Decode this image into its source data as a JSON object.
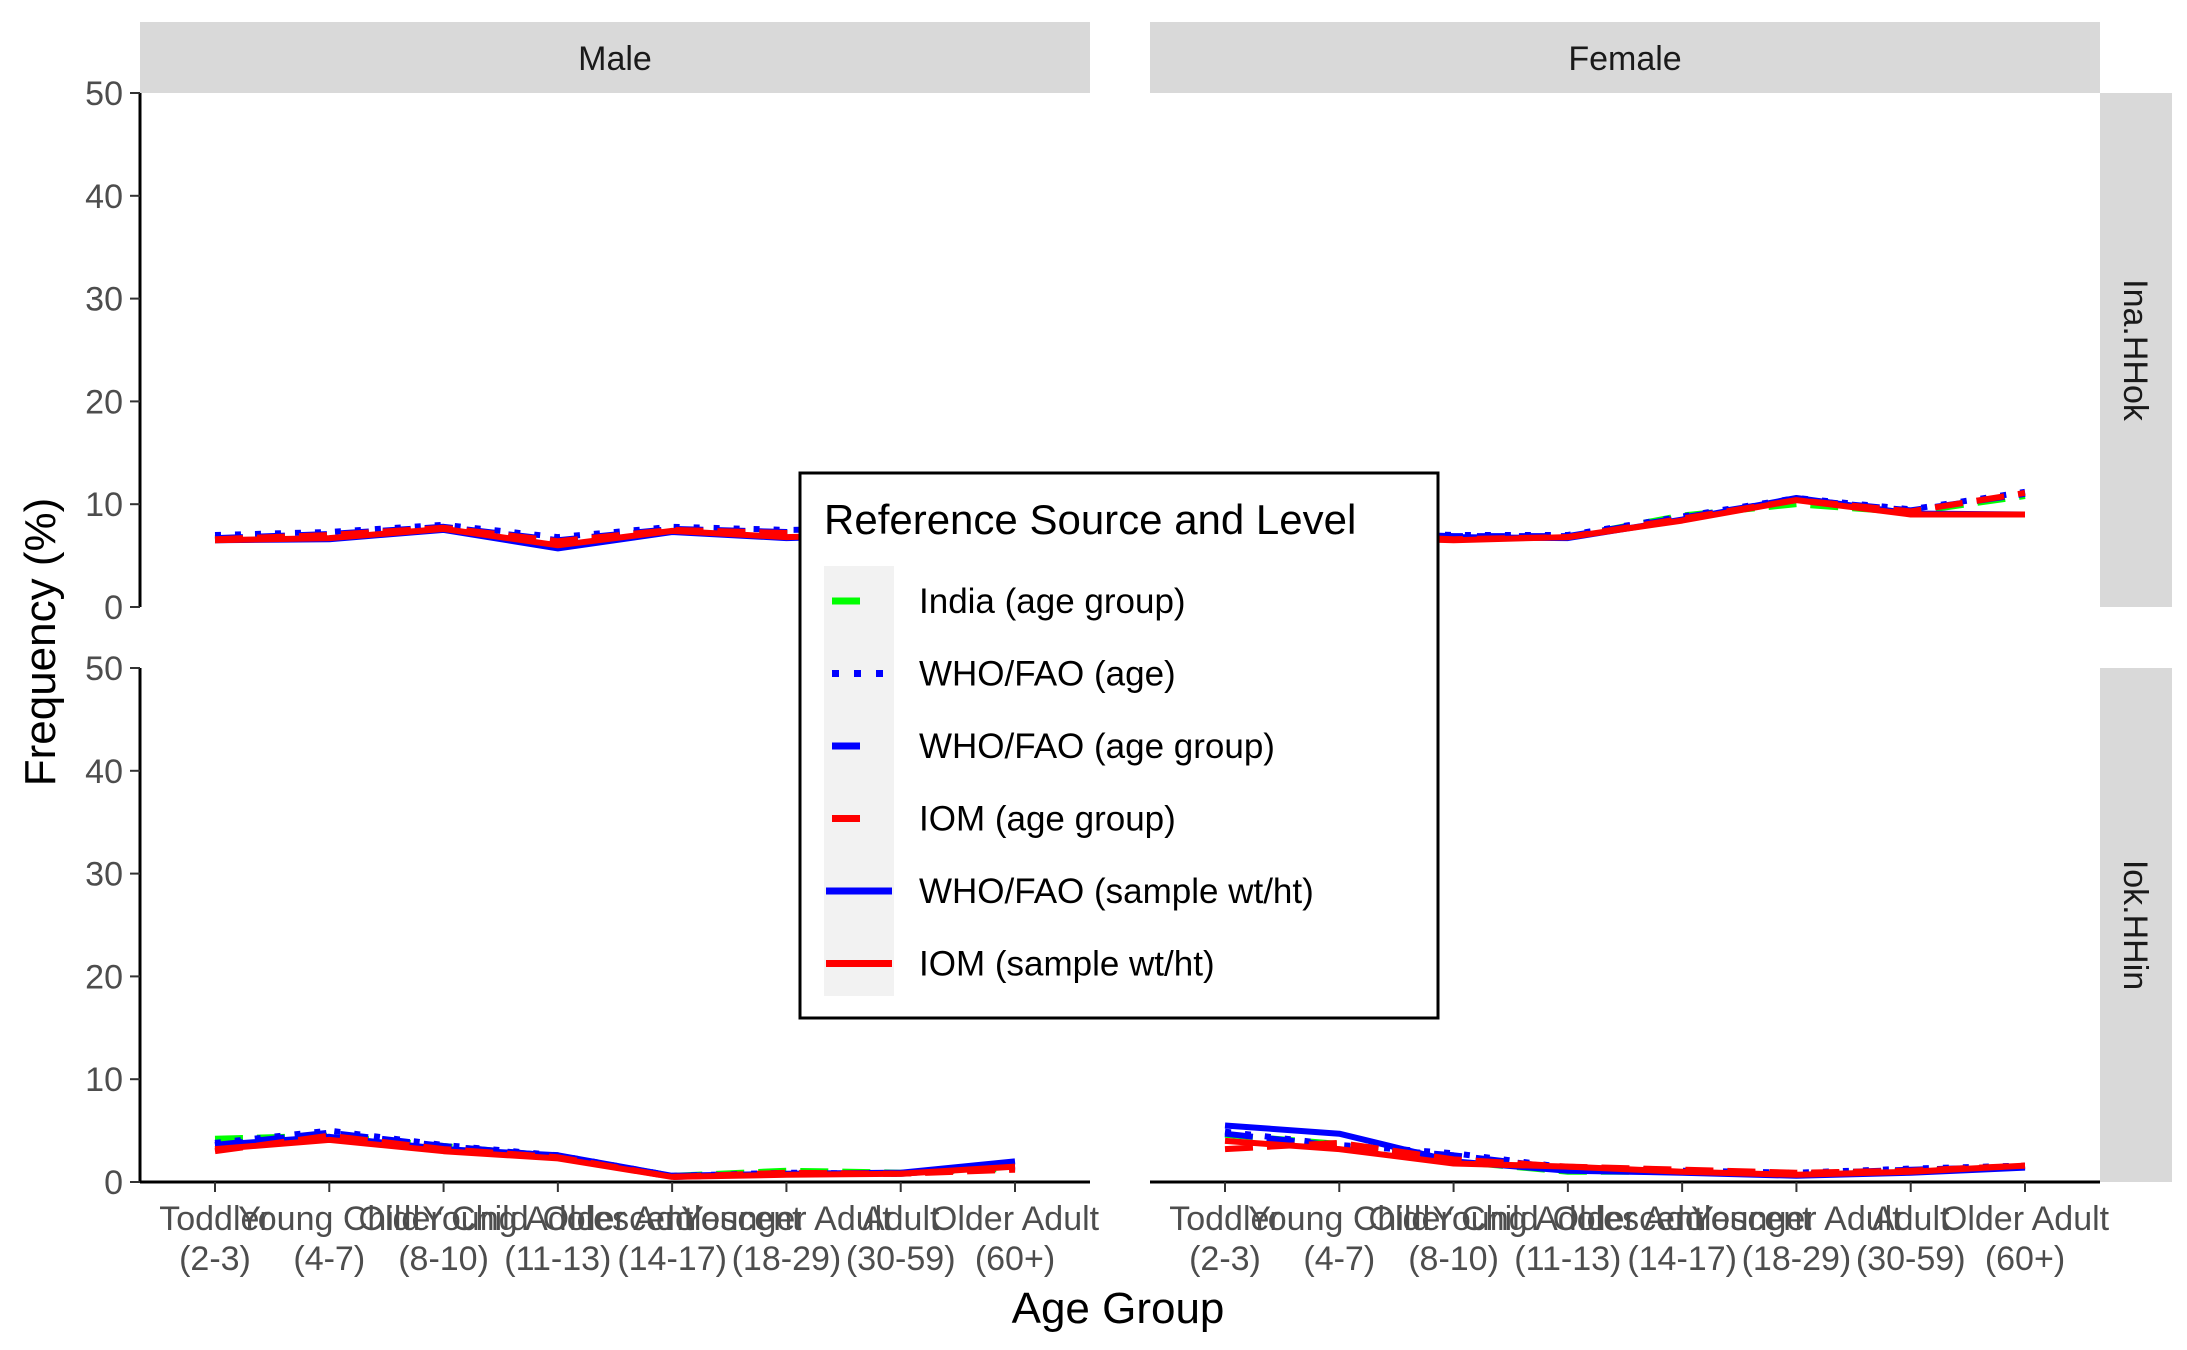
{
  "chart_data": {
    "type": "line",
    "xlabel": "Age Group",
    "ylabel": "Frequency (%)",
    "ylim": [
      0,
      50
    ],
    "yticks": [
      0,
      10,
      20,
      30,
      40,
      50
    ],
    "facet_columns": [
      "Male",
      "Female"
    ],
    "facet_rows": [
      "Ina.HHok",
      "Iok.HHin"
    ],
    "categories": [
      [
        "Toddler",
        "(2-3)"
      ],
      [
        "Young Child",
        "(4-7)"
      ],
      [
        "Older Child",
        "(8-10)"
      ],
      [
        "Young Adolescent",
        "(11-13)"
      ],
      [
        "Older Adolescent",
        "(14-17)"
      ],
      [
        "Younger Adult",
        "(18-29)"
      ],
      [
        "Adult",
        "(30-59)"
      ],
      [
        "Older Adult",
        "(60+)"
      ]
    ],
    "legend": {
      "title": "Reference Source and Level",
      "placement": "center",
      "entries": [
        {
          "label": "India (age group)",
          "color": "#00ff00",
          "dash": "dashed"
        },
        {
          "label": "WHO/FAO (age)",
          "color": "#0000ff",
          "dash": "dotted"
        },
        {
          "label": "WHO/FAO (age group)",
          "color": "#0000ff",
          "dash": "dashed"
        },
        {
          "label": "IOM (age group)",
          "color": "#ff0000",
          "dash": "dashed"
        },
        {
          "label": "WHO/FAO (sample wt/ht)",
          "color": "#0000ff",
          "dash": "solid"
        },
        {
          "label": "IOM (sample wt/ht)",
          "color": "#ff0000",
          "dash": "solid"
        }
      ]
    },
    "panels": [
      {
        "column": "Male",
        "row": "Ina.HHok",
        "series": [
          {
            "name": "India (age group)",
            "values": [
              6.5,
              7.0,
              7.6,
              6.3,
              7.4,
              7.2,
              7.3,
              7.4
            ]
          },
          {
            "name": "WHO/FAO (age)",
            "values": [
              7.0,
              7.3,
              8.0,
              6.8,
              7.8,
              7.5,
              7.6,
              7.7
            ]
          },
          {
            "name": "WHO/FAO (age group)",
            "values": [
              6.7,
              7.1,
              7.8,
              6.5,
              7.6,
              7.3,
              7.4,
              7.5
            ]
          },
          {
            "name": "IOM (age group)",
            "values": [
              6.6,
              7.0,
              7.7,
              6.4,
              7.5,
              7.2,
              7.3,
              7.4
            ]
          },
          {
            "name": "WHO/FAO (sample wt/ht)",
            "values": [
              6.5,
              6.6,
              7.5,
              5.7,
              7.3,
              6.7,
              7.0,
              7.1
            ]
          },
          {
            "name": "IOM (sample wt/ht)",
            "values": [
              6.5,
              6.7,
              7.6,
              6.0,
              7.4,
              6.8,
              7.1,
              7.2
            ]
          }
        ]
      },
      {
        "column": "Female",
        "row": "Ina.HHok",
        "series": [
          {
            "name": "India (age group)",
            "values": [
              6.6,
              6.8,
              6.7,
              6.8,
              8.9,
              10.0,
              9.2,
              10.8
            ]
          },
          {
            "name": "WHO/FAO (age)",
            "values": [
              7.2,
              7.4,
              7.0,
              7.0,
              8.8,
              10.6,
              9.5,
              11.2
            ]
          },
          {
            "name": "WHO/FAO (age group)",
            "values": [
              7.0,
              7.2,
              6.9,
              6.9,
              8.7,
              10.5,
              9.4,
              11.0
            ]
          },
          {
            "name": "IOM (age group)",
            "values": [
              6.9,
              7.0,
              6.6,
              6.8,
              8.6,
              10.4,
              9.3,
              11.1
            ]
          },
          {
            "name": "WHO/FAO (sample wt/ht)",
            "values": [
              6.8,
              7.0,
              6.8,
              6.7,
              8.5,
              10.6,
              9.1,
              9.0
            ]
          },
          {
            "name": "IOM (sample wt/ht)",
            "values": [
              6.6,
              6.8,
              6.5,
              6.8,
              8.4,
              10.4,
              9.0,
              9.0
            ]
          }
        ]
      },
      {
        "column": "Male",
        "row": "Iok.HHin",
        "series": [
          {
            "name": "India (age group)",
            "values": [
              4.2,
              4.5,
              3.5,
              2.5,
              0.6,
              1.1,
              0.9,
              1.3
            ]
          },
          {
            "name": "WHO/FAO (age)",
            "values": [
              3.8,
              5.0,
              3.6,
              2.6,
              0.6,
              0.9,
              0.8,
              1.6
            ]
          },
          {
            "name": "WHO/FAO (age group)",
            "values": [
              3.6,
              4.8,
              3.5,
              2.5,
              0.5,
              0.8,
              0.8,
              1.4
            ]
          },
          {
            "name": "IOM (age group)",
            "values": [
              3.0,
              4.5,
              3.2,
              2.4,
              0.5,
              0.9,
              0.8,
              1.2
            ]
          },
          {
            "name": "WHO/FAO (sample wt/ht)",
            "values": [
              3.6,
              4.4,
              3.2,
              2.6,
              0.6,
              0.8,
              0.9,
              2.0
            ]
          },
          {
            "name": "IOM (sample wt/ht)",
            "values": [
              3.2,
              4.1,
              3.0,
              2.3,
              0.5,
              0.7,
              0.8,
              1.5
            ]
          }
        ]
      },
      {
        "column": "Female",
        "row": "Iok.HHin",
        "series": [
          {
            "name": "India (age group)",
            "values": [
              4.6,
              3.7,
              2.0,
              1.0,
              1.0,
              0.7,
              1.1,
              1.5
            ]
          },
          {
            "name": "WHO/FAO (age)",
            "values": [
              4.9,
              3.6,
              2.8,
              1.4,
              1.1,
              0.9,
              1.3,
              1.6
            ]
          },
          {
            "name": "WHO/FAO (age group)",
            "values": [
              4.7,
              3.5,
              2.6,
              1.3,
              1.0,
              0.8,
              1.2,
              1.5
            ]
          },
          {
            "name": "IOM (age group)",
            "values": [
              3.2,
              3.8,
              2.2,
              1.5,
              1.2,
              0.9,
              1.1,
              1.6
            ]
          },
          {
            "name": "WHO/FAO (sample wt/ht)",
            "values": [
              5.5,
              4.7,
              2.0,
              1.1,
              0.9,
              0.6,
              0.9,
              1.4
            ]
          },
          {
            "name": "IOM (sample wt/ht)",
            "values": [
              4.0,
              3.2,
              1.8,
              1.5,
              1.0,
              0.7,
              1.0,
              1.6
            ]
          }
        ]
      }
    ]
  }
}
